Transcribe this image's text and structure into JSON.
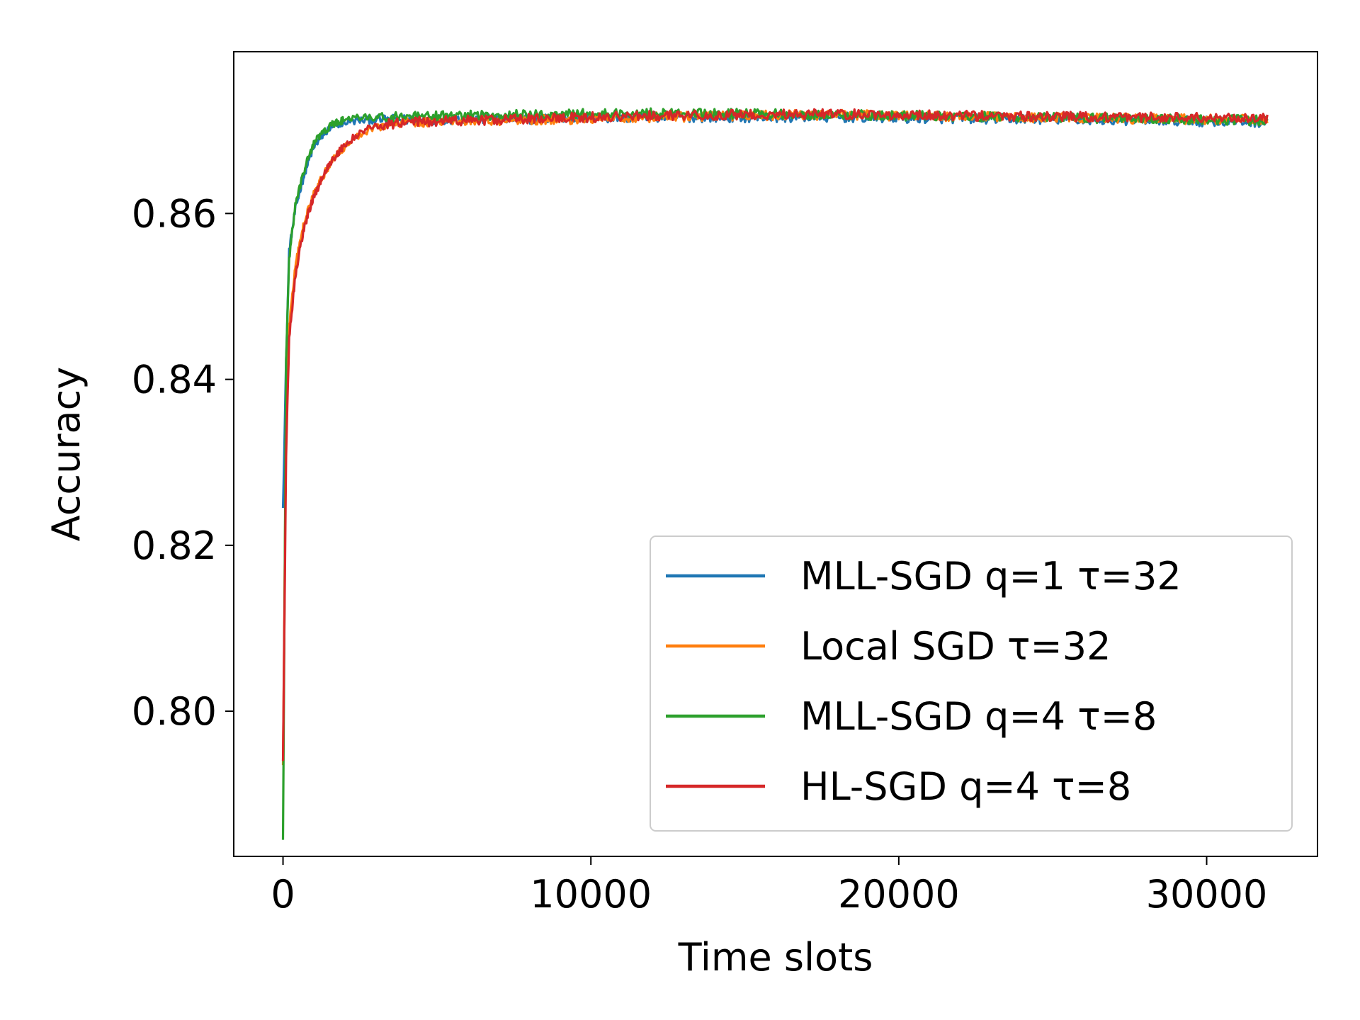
{
  "chart_data": {
    "type": "line",
    "title": "",
    "xlabel": "Time slots",
    "ylabel": "Accuracy",
    "xlim": [
      -1600,
      33600
    ],
    "ylim": [
      0.7825,
      0.8795
    ],
    "xticks": [
      0,
      10000,
      20000,
      30000
    ],
    "xtick_labels": [
      "0",
      "10000",
      "20000",
      "30000"
    ],
    "yticks": [
      0.8,
      0.82,
      0.84,
      0.86
    ],
    "ytick_labels": [
      "0.80",
      "0.82",
      "0.84",
      "0.86"
    ],
    "grid": false,
    "legend_position": "lower-right",
    "series": [
      {
        "name": "MLL-SGD q=1 τ=32",
        "color": "#1f77b4",
        "x": [
          0,
          100,
          200,
          400,
          600,
          800,
          1000,
          1300,
          1600,
          2000,
          2500,
          3000,
          4000,
          6000,
          8000,
          10000,
          12000,
          15000,
          18000,
          20000,
          24000,
          28000,
          32000
        ],
        "y": [
          0.8245,
          0.842,
          0.8555,
          0.8605,
          0.8635,
          0.866,
          0.868,
          0.8695,
          0.8705,
          0.871,
          0.8712,
          0.8713,
          0.8713,
          0.8714,
          0.8714,
          0.8715,
          0.8716,
          0.8716,
          0.8716,
          0.8715,
          0.8714,
          0.8712,
          0.871
        ]
      },
      {
        "name": "Local SGD τ=32",
        "color": "#ff7f0e",
        "x": [
          0,
          100,
          200,
          400,
          600,
          800,
          1000,
          1300,
          1600,
          2000,
          2500,
          3000,
          4000,
          6000,
          8000,
          10000,
          12000,
          15000,
          18000,
          20000,
          24000,
          28000,
          32000
        ],
        "y": [
          0.7935,
          0.8355,
          0.8465,
          0.8535,
          0.8575,
          0.8605,
          0.8625,
          0.8645,
          0.8665,
          0.868,
          0.8695,
          0.8705,
          0.871,
          0.8712,
          0.8713,
          0.8714,
          0.8716,
          0.8718,
          0.8719,
          0.8718,
          0.8716,
          0.8714,
          0.8713
        ]
      },
      {
        "name": "MLL-SGD q=4 τ=8",
        "color": "#2ca02c",
        "x": [
          0,
          100,
          200,
          400,
          600,
          800,
          1000,
          1300,
          1600,
          2000,
          2500,
          3000,
          4000,
          6000,
          8000,
          10000,
          12000,
          15000,
          18000,
          20000,
          24000,
          28000,
          32000
        ],
        "y": [
          0.7845,
          0.8425,
          0.8545,
          0.861,
          0.864,
          0.8665,
          0.8685,
          0.8698,
          0.8707,
          0.8713,
          0.8715,
          0.8716,
          0.8716,
          0.8718,
          0.8719,
          0.872,
          0.8721,
          0.872,
          0.8719,
          0.8718,
          0.8716,
          0.8714,
          0.8712
        ]
      },
      {
        "name": "HL-SGD q=4 τ=8",
        "color": "#d62728",
        "x": [
          0,
          100,
          200,
          400,
          600,
          800,
          1000,
          1300,
          1600,
          2000,
          2500,
          3000,
          4000,
          6000,
          8000,
          10000,
          12000,
          15000,
          18000,
          20000,
          24000,
          28000,
          32000
        ],
        "y": [
          0.794,
          0.831,
          0.845,
          0.8525,
          0.8568,
          0.8598,
          0.862,
          0.8645,
          0.8665,
          0.8682,
          0.8698,
          0.8706,
          0.871,
          0.8712,
          0.8714,
          0.8716,
          0.8718,
          0.8719,
          0.872,
          0.8719,
          0.8717,
          0.8716,
          0.8715
        ]
      }
    ]
  }
}
